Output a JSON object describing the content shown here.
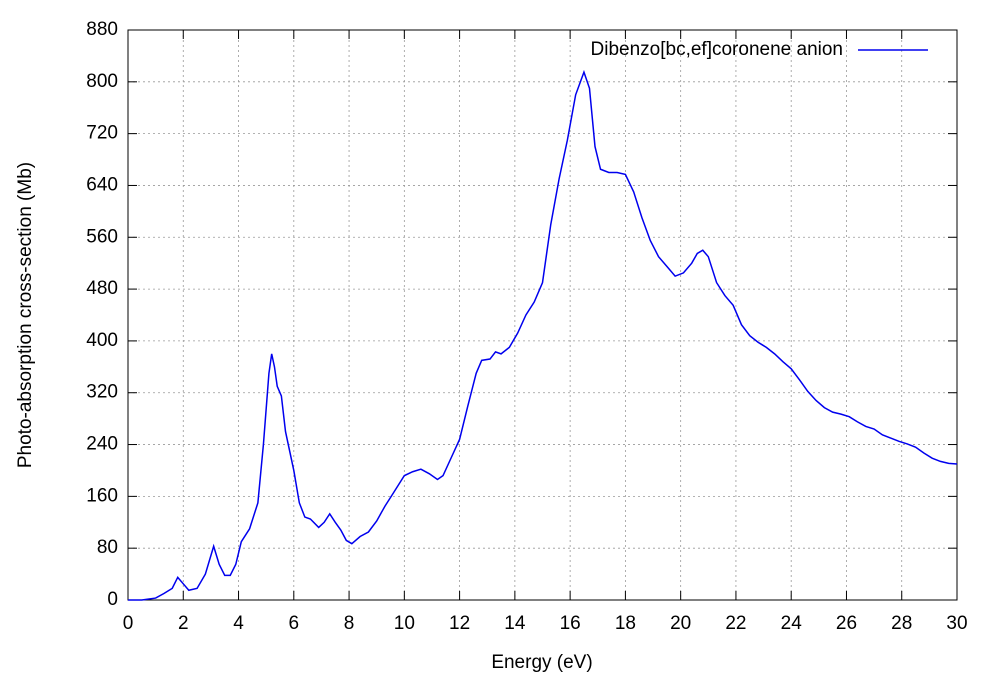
{
  "chart_data": {
    "type": "line",
    "xlabel": "Energy (eV)",
    "ylabel": "Photo-absorption cross-section (Mb)",
    "legend": "top-right",
    "grid": true,
    "xlim": [
      0,
      30
    ],
    "ylim": [
      0,
      880
    ],
    "xticks": [
      0,
      2,
      4,
      6,
      8,
      10,
      12,
      14,
      16,
      18,
      20,
      22,
      24,
      26,
      28,
      30
    ],
    "yticks": [
      0,
      80,
      160,
      240,
      320,
      400,
      480,
      560,
      640,
      720,
      800,
      880
    ],
    "x": [
      0,
      0.5,
      1.0,
      1.3,
      1.6,
      1.8,
      2.0,
      2.2,
      2.5,
      2.8,
      3.1,
      3.3,
      3.5,
      3.7,
      3.9,
      4.1,
      4.4,
      4.7,
      4.9,
      5.1,
      5.2,
      5.3,
      5.4,
      5.55,
      5.7,
      6.0,
      6.2,
      6.4,
      6.6,
      6.9,
      7.1,
      7.3,
      7.5,
      7.7,
      7.9,
      8.1,
      8.4,
      8.7,
      9.0,
      9.3,
      9.6,
      10.0,
      10.3,
      10.6,
      10.9,
      11.2,
      11.4,
      11.7,
      12.0,
      12.3,
      12.6,
      12.8,
      13.1,
      13.3,
      13.5,
      13.8,
      14.1,
      14.4,
      14.7,
      15.0,
      15.3,
      15.6,
      15.9,
      16.2,
      16.5,
      16.7,
      16.9,
      17.1,
      17.4,
      17.7,
      18.0,
      18.3,
      18.6,
      18.9,
      19.2,
      19.5,
      19.8,
      20.1,
      20.4,
      20.6,
      20.8,
      21.0,
      21.3,
      21.6,
      21.9,
      22.2,
      22.5,
      22.8,
      23.1,
      23.4,
      23.7,
      24.0,
      24.3,
      24.6,
      24.9,
      25.2,
      25.5,
      25.8,
      26.1,
      26.4,
      26.7,
      27.0,
      27.3,
      27.6,
      27.9,
      28.2,
      28.5,
      28.8,
      29.1,
      29.4,
      29.7,
      30.0
    ],
    "series": [
      {
        "name": "Dibenzo[bc,ef]coronene anion",
        "color": "#0000ee",
        "values": [
          0,
          0,
          3,
          10,
          18,
          35,
          25,
          15,
          18,
          40,
          83,
          55,
          38,
          38,
          55,
          90,
          110,
          150,
          240,
          350,
          380,
          360,
          330,
          315,
          260,
          200,
          150,
          128,
          125,
          112,
          120,
          133,
          120,
          108,
          92,
          87,
          98,
          105,
          122,
          145,
          165,
          192,
          198,
          202,
          195,
          186,
          192,
          220,
          248,
          300,
          350,
          370,
          372,
          383,
          380,
          390,
          412,
          440,
          460,
          490,
          580,
          650,
          710,
          780,
          815,
          790,
          700,
          665,
          660,
          660,
          657,
          630,
          590,
          555,
          530,
          515,
          500,
          505,
          520,
          535,
          540,
          530,
          490,
          470,
          455,
          425,
          408,
          398,
          390,
          380,
          368,
          357,
          340,
          322,
          308,
          297,
          290,
          287,
          283,
          275,
          268,
          264,
          255,
          250,
          245,
          241,
          236,
          227,
          219,
          214,
          211,
          210
        ]
      }
    ]
  }
}
